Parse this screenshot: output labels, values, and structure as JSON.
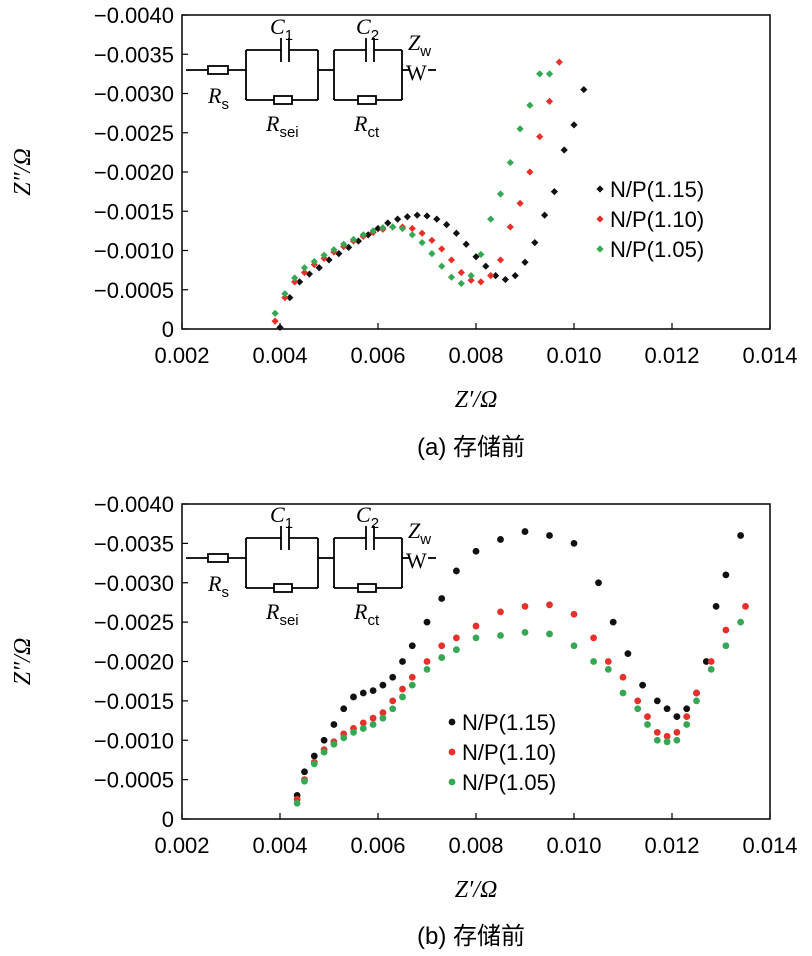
{
  "chart_data": [
    {
      "type": "scatter",
      "panel": "a",
      "caption": "(a) 存储前",
      "xlabel": "Z′/Ω",
      "ylabel": "Z″/Ω",
      "xlim": [
        0.002,
        0.014
      ],
      "ylim": [
        0,
        -0.004
      ],
      "xticks": [
        "0.002",
        "0.004",
        "0.006",
        "0.008",
        "0.010",
        "0.012",
        "0.014"
      ],
      "yticks": [
        "0",
        "−0.0005",
        "−0.0010",
        "−0.0015",
        "−0.0020",
        "−0.0025",
        "−0.0030",
        "−0.0035",
        "−0.0040"
      ],
      "marker": "diamond",
      "legend": "right",
      "circuit": {
        "Rs": [
          "R",
          "s"
        ],
        "C1": [
          "C",
          "1"
        ],
        "C2": [
          "C",
          "2"
        ],
        "Rsei": [
          "R",
          "sei"
        ],
        "Rct": [
          "R",
          "ct"
        ],
        "Zw": [
          "Z",
          "w"
        ],
        "W": "W"
      },
      "series": [
        {
          "name": "N/P(1.15)",
          "color": "#111111",
          "points": [
            [
              0.004,
              -2e-05
            ],
            [
              0.0042,
              -0.0004
            ],
            [
              0.0044,
              -0.0006
            ],
            [
              0.0046,
              -0.0007
            ],
            [
              0.0048,
              -0.00078
            ],
            [
              0.005,
              -0.00088
            ],
            [
              0.0052,
              -0.00096
            ],
            [
              0.0054,
              -0.00104
            ],
            [
              0.0056,
              -0.00112
            ],
            [
              0.0058,
              -0.0012
            ],
            [
              0.006,
              -0.00128
            ],
            [
              0.0062,
              -0.00135
            ],
            [
              0.0064,
              -0.0014
            ],
            [
              0.0066,
              -0.00143
            ],
            [
              0.0068,
              -0.00145
            ],
            [
              0.007,
              -0.00144
            ],
            [
              0.0072,
              -0.0014
            ],
            [
              0.0074,
              -0.00133
            ],
            [
              0.0076,
              -0.00122
            ],
            [
              0.0078,
              -0.00108
            ],
            [
              0.008,
              -0.00092
            ],
            [
              0.0082,
              -0.0008
            ],
            [
              0.0084,
              -0.00068
            ],
            [
              0.0086,
              -0.00063
            ],
            [
              0.0088,
              -0.00068
            ],
            [
              0.009,
              -0.00085
            ],
            [
              0.0092,
              -0.0011
            ],
            [
              0.0094,
              -0.00145
            ],
            [
              0.0096,
              -0.00175
            ],
            [
              0.0098,
              -0.00228
            ],
            [
              0.01,
              -0.0026
            ],
            [
              0.0102,
              -0.00305
            ]
          ]
        },
        {
          "name": "N/P(1.10)",
          "color": "#e8302a",
          "points": [
            [
              0.0039,
              -0.0001
            ],
            [
              0.0041,
              -0.0004
            ],
            [
              0.0043,
              -0.0006
            ],
            [
              0.0045,
              -0.00072
            ],
            [
              0.0047,
              -0.00082
            ],
            [
              0.0049,
              -0.0009
            ],
            [
              0.0051,
              -0.00098
            ],
            [
              0.0053,
              -0.00105
            ],
            [
              0.0055,
              -0.00112
            ],
            [
              0.0057,
              -0.00118
            ],
            [
              0.0059,
              -0.00123
            ],
            [
              0.0061,
              -0.00127
            ],
            [
              0.0063,
              -0.0013
            ],
            [
              0.0065,
              -0.0013
            ],
            [
              0.0067,
              -0.00128
            ],
            [
              0.0069,
              -0.00122
            ],
            [
              0.0071,
              -0.00113
            ],
            [
              0.0073,
              -0.00102
            ],
            [
              0.0075,
              -0.00088
            ],
            [
              0.0077,
              -0.00072
            ],
            [
              0.0079,
              -0.00062
            ],
            [
              0.0081,
              -0.0006
            ],
            [
              0.0083,
              -0.00068
            ],
            [
              0.0085,
              -0.00088
            ],
            [
              0.0087,
              -0.0013
            ],
            [
              0.0089,
              -0.0016
            ],
            [
              0.0091,
              -0.002
            ],
            [
              0.0093,
              -0.00245
            ],
            [
              0.0095,
              -0.0029
            ],
            [
              0.0097,
              -0.0034
            ]
          ]
        },
        {
          "name": "N/P(1.05)",
          "color": "#34a853",
          "points": [
            [
              0.0039,
              -0.0002
            ],
            [
              0.0041,
              -0.00045
            ],
            [
              0.0043,
              -0.00065
            ],
            [
              0.0045,
              -0.00078
            ],
            [
              0.0047,
              -0.00086
            ],
            [
              0.0049,
              -0.00094
            ],
            [
              0.0051,
              -0.00101
            ],
            [
              0.0053,
              -0.00108
            ],
            [
              0.0055,
              -0.00114
            ],
            [
              0.0057,
              -0.0012
            ],
            [
              0.0059,
              -0.00125
            ],
            [
              0.0061,
              -0.00129
            ],
            [
              0.0063,
              -0.0013
            ],
            [
              0.0065,
              -0.00128
            ],
            [
              0.0067,
              -0.0012
            ],
            [
              0.0069,
              -0.0011
            ],
            [
              0.0071,
              -0.00096
            ],
            [
              0.0073,
              -0.0008
            ],
            [
              0.0075,
              -0.00066
            ],
            [
              0.0077,
              -0.00058
            ],
            [
              0.0079,
              -0.00068
            ],
            [
              0.0081,
              -0.00095
            ],
            [
              0.0083,
              -0.0014
            ],
            [
              0.0085,
              -0.00172
            ],
            [
              0.0087,
              -0.00212
            ],
            [
              0.0089,
              -0.00255
            ],
            [
              0.0091,
              -0.00285
            ],
            [
              0.0093,
              -0.00325
            ],
            [
              0.0095,
              -0.00325
            ]
          ]
        }
      ]
    },
    {
      "type": "scatter",
      "panel": "b",
      "caption": "(b) 存储前",
      "xlabel": "Z′/Ω",
      "ylabel": "Z″/Ω",
      "xlim": [
        0.002,
        0.014
      ],
      "ylim": [
        0,
        -0.004
      ],
      "xticks": [
        "0.002",
        "0.004",
        "0.006",
        "0.008",
        "0.010",
        "0.012",
        "0.014"
      ],
      "yticks": [
        "0",
        "−0.0005",
        "−0.0010",
        "−0.0015",
        "−0.0020",
        "−0.0025",
        "−0.0030",
        "−0.0035",
        "−0.0040"
      ],
      "marker": "circle",
      "legend": "lower-right",
      "circuit": {
        "Rs": [
          "R",
          "s"
        ],
        "C1": [
          "C",
          "1"
        ],
        "C2": [
          "C",
          "2"
        ],
        "Rsei": [
          "R",
          "sei"
        ],
        "Rct": [
          "R",
          "ct"
        ],
        "Zw": [
          "Z",
          "w"
        ],
        "W": "W"
      },
      "series": [
        {
          "name": "N/P(1.15)",
          "color": "#111111",
          "points": [
            [
              0.00435,
              -0.0003
            ],
            [
              0.0045,
              -0.0006
            ],
            [
              0.0047,
              -0.0008
            ],
            [
              0.0049,
              -0.001
            ],
            [
              0.0051,
              -0.0012
            ],
            [
              0.0053,
              -0.0014
            ],
            [
              0.0055,
              -0.00155
            ],
            [
              0.0057,
              -0.0016
            ],
            [
              0.0059,
              -0.00163
            ],
            [
              0.0061,
              -0.0017
            ],
            [
              0.0063,
              -0.0018
            ],
            [
              0.0065,
              -0.002
            ],
            [
              0.0067,
              -0.0022
            ],
            [
              0.007,
              -0.0025
            ],
            [
              0.0073,
              -0.0028
            ],
            [
              0.0076,
              -0.00315
            ],
            [
              0.008,
              -0.0034
            ],
            [
              0.0085,
              -0.00355
            ],
            [
              0.009,
              -0.00365
            ],
            [
              0.0095,
              -0.0036
            ],
            [
              0.01,
              -0.0035
            ],
            [
              0.0105,
              -0.003
            ],
            [
              0.0108,
              -0.0025
            ],
            [
              0.0111,
              -0.0021
            ],
            [
              0.0114,
              -0.0017
            ],
            [
              0.0117,
              -0.0015
            ],
            [
              0.0119,
              -0.0014
            ],
            [
              0.0121,
              -0.0013
            ],
            [
              0.0123,
              -0.0014
            ],
            [
              0.0125,
              -0.0016
            ],
            [
              0.0127,
              -0.002
            ],
            [
              0.0129,
              -0.0027
            ],
            [
              0.0131,
              -0.0031
            ],
            [
              0.0134,
              -0.0036
            ]
          ]
        },
        {
          "name": "N/P(1.10)",
          "color": "#e8302a",
          "points": [
            [
              0.00435,
              -0.00025
            ],
            [
              0.0045,
              -0.0005
            ],
            [
              0.0047,
              -0.00072
            ],
            [
              0.0049,
              -0.00088
            ],
            [
              0.0051,
              -0.00098
            ],
            [
              0.0053,
              -0.00108
            ],
            [
              0.0055,
              -0.00115
            ],
            [
              0.0057,
              -0.00122
            ],
            [
              0.0059,
              -0.00128
            ],
            [
              0.0061,
              -0.00135
            ],
            [
              0.0063,
              -0.0015
            ],
            [
              0.0065,
              -0.00165
            ],
            [
              0.0067,
              -0.0018
            ],
            [
              0.007,
              -0.002
            ],
            [
              0.0073,
              -0.0022
            ],
            [
              0.0076,
              -0.0023
            ],
            [
              0.008,
              -0.00245
            ],
            [
              0.0085,
              -0.00263
            ],
            [
              0.009,
              -0.0027
            ],
            [
              0.0095,
              -0.00272
            ],
            [
              0.01,
              -0.0026
            ],
            [
              0.0104,
              -0.0023
            ],
            [
              0.0107,
              -0.002
            ],
            [
              0.011,
              -0.0018
            ],
            [
              0.0113,
              -0.0015
            ],
            [
              0.0115,
              -0.0013
            ],
            [
              0.0117,
              -0.0011
            ],
            [
              0.0119,
              -0.00105
            ],
            [
              0.0121,
              -0.0011
            ],
            [
              0.0123,
              -0.0013
            ],
            [
              0.0125,
              -0.0016
            ],
            [
              0.0128,
              -0.002
            ],
            [
              0.0131,
              -0.0024
            ],
            [
              0.0135,
              -0.0027
            ]
          ]
        },
        {
          "name": "N/P(1.05)",
          "color": "#34a853",
          "points": [
            [
              0.00435,
              -0.0002
            ],
            [
              0.0045,
              -0.00048
            ],
            [
              0.0047,
              -0.0007
            ],
            [
              0.0049,
              -0.00085
            ],
            [
              0.0051,
              -0.00095
            ],
            [
              0.0053,
              -0.00103
            ],
            [
              0.0055,
              -0.0011
            ],
            [
              0.0057,
              -0.00115
            ],
            [
              0.0059,
              -0.0012
            ],
            [
              0.0061,
              -0.00128
            ],
            [
              0.0063,
              -0.0014
            ],
            [
              0.0065,
              -0.00155
            ],
            [
              0.0067,
              -0.0017
            ],
            [
              0.007,
              -0.0019
            ],
            [
              0.0073,
              -0.00205
            ],
            [
              0.0076,
              -0.00215
            ],
            [
              0.008,
              -0.0023
            ],
            [
              0.0085,
              -0.00233
            ],
            [
              0.009,
              -0.00237
            ],
            [
              0.0095,
              -0.00235
            ],
            [
              0.01,
              -0.0022
            ],
            [
              0.0104,
              -0.002
            ],
            [
              0.0107,
              -0.0019
            ],
            [
              0.011,
              -0.0016
            ],
            [
              0.0113,
              -0.0014
            ],
            [
              0.0115,
              -0.0012
            ],
            [
              0.0117,
              -0.001
            ],
            [
              0.0119,
              -0.00098
            ],
            [
              0.0121,
              -0.001
            ],
            [
              0.0123,
              -0.0012
            ],
            [
              0.0125,
              -0.0015
            ],
            [
              0.0128,
              -0.0019
            ],
            [
              0.0131,
              -0.0022
            ],
            [
              0.0134,
              -0.0025
            ]
          ]
        }
      ]
    }
  ]
}
